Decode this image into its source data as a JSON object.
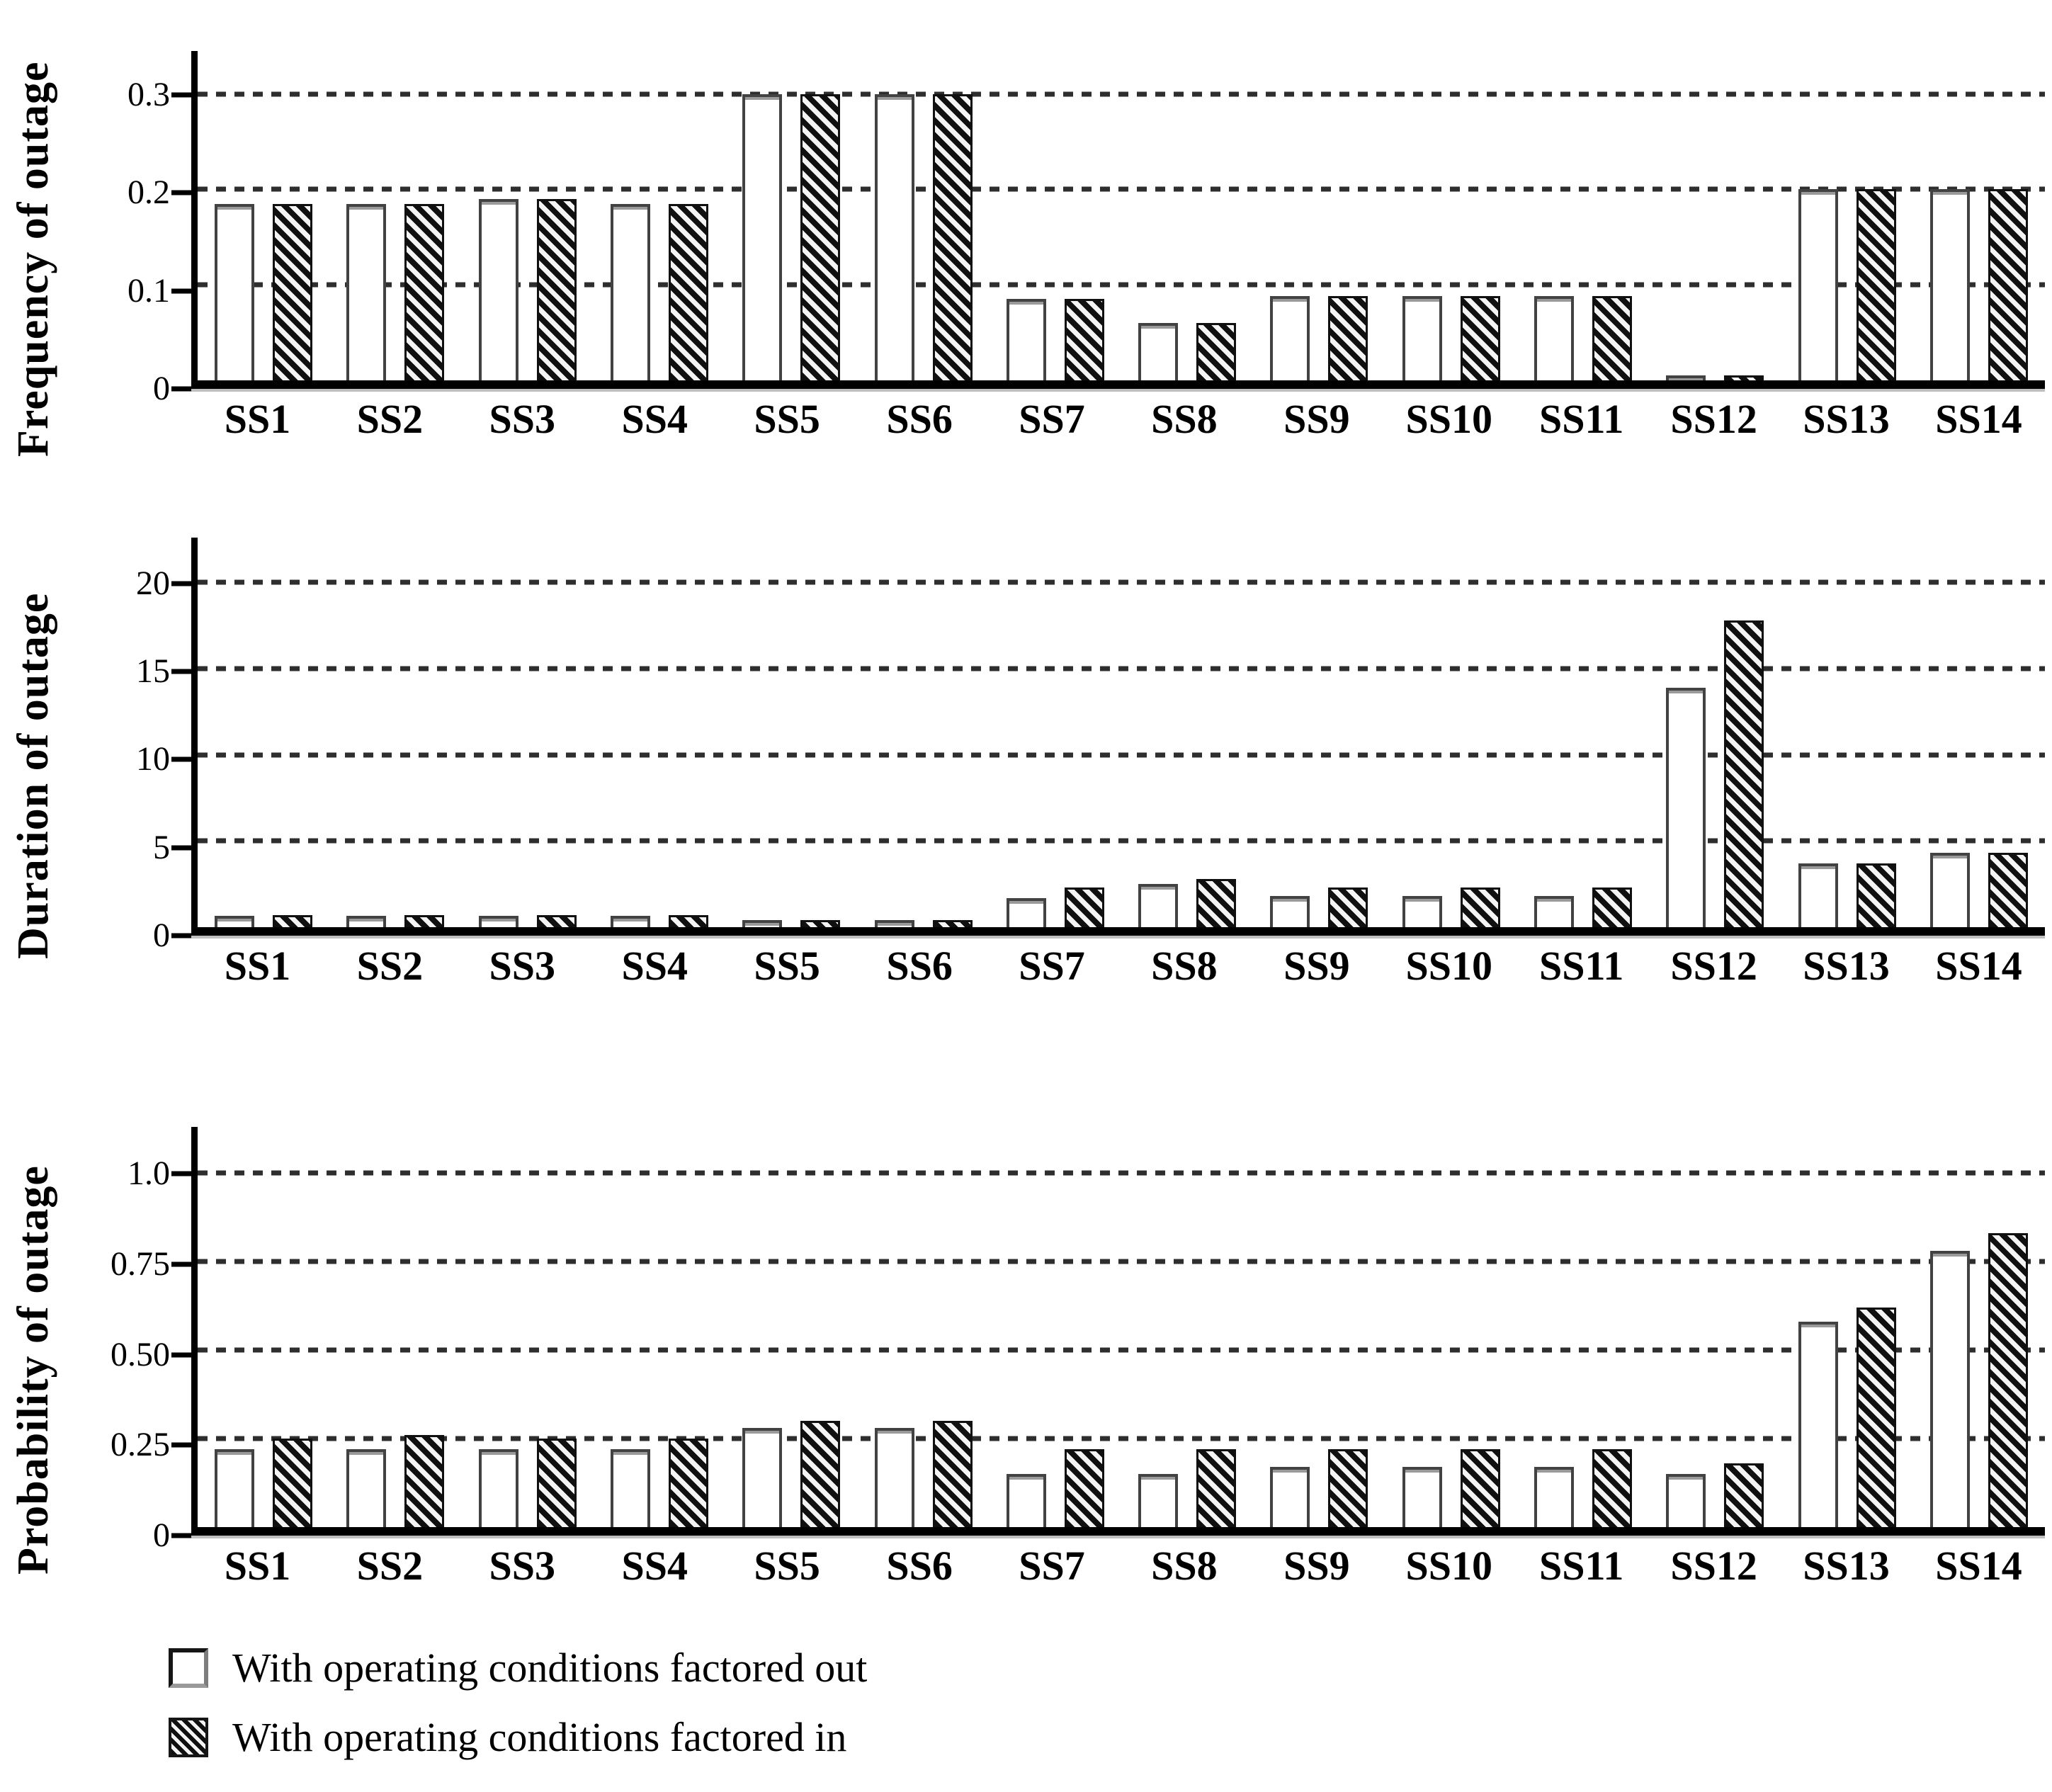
{
  "colors": {
    "axis_color": "#000000",
    "text_color": "#000000",
    "bar_outline": "#424242",
    "hatch_color": "#101010",
    "gridline_color": "#2e2e2e",
    "bg_color": "#ffffff"
  },
  "legend": {
    "items": [
      {
        "swatch": "white",
        "label": "With operating conditions factored out"
      },
      {
        "swatch": "hatched",
        "label": "With operating conditions factored in"
      }
    ]
  },
  "chart_data": [
    {
      "type": "bar",
      "title": "",
      "ylabel": "Frequency of outage",
      "xlabel": "",
      "grid": "horizontal-dashed",
      "legend_position": "below-figure",
      "categories": [
        "SS1",
        "SS2",
        "SS3",
        "SS4",
        "SS5",
        "SS6",
        "SS7",
        "SS8",
        "SS9",
        "SS10",
        "SS11",
        "SS12",
        "SS13",
        "SS14"
      ],
      "ylim": [
        0,
        0.345
      ],
      "yticks": [
        {
          "value": 0.3,
          "label": "0.3"
        },
        {
          "value": 0.2,
          "label": "0.2"
        },
        {
          "value": 0.1,
          "label": "0.1"
        },
        {
          "value": 0,
          "label": "0"
        }
      ],
      "series": [
        {
          "name": "With operating conditions factored out",
          "values": [
            0.185,
            0.185,
            0.19,
            0.185,
            0.3,
            0.3,
            0.085,
            0.06,
            0.088,
            0.088,
            0.088,
            0.005,
            0.2,
            0.2
          ]
        },
        {
          "name": "With operating conditions factored in",
          "values": [
            0.185,
            0.185,
            0.19,
            0.185,
            0.3,
            0.3,
            0.085,
            0.06,
            0.088,
            0.088,
            0.088,
            0.005,
            0.2,
            0.2
          ]
        }
      ]
    },
    {
      "type": "bar",
      "title": "",
      "ylabel": "Duration of outage",
      "xlabel": "",
      "grid": "horizontal-dashed",
      "legend_position": "below-figure",
      "categories": [
        "SS1",
        "SS2",
        "SS3",
        "SS4",
        "SS5",
        "SS6",
        "SS7",
        "SS8",
        "SS9",
        "SS10",
        "SS11",
        "SS12",
        "SS13",
        "SS14"
      ],
      "ylim": [
        0,
        22.6
      ],
      "yticks": [
        {
          "value": 20,
          "label": "20"
        },
        {
          "value": 15,
          "label": "15"
        },
        {
          "value": 10,
          "label": "10"
        },
        {
          "value": 5,
          "label": "5"
        },
        {
          "value": 0,
          "label": "0"
        }
      ],
      "series": [
        {
          "name": "With operating conditions factored out",
          "values": [
            0.65,
            0.65,
            0.65,
            0.65,
            0.4,
            0.4,
            1.7,
            2.5,
            1.8,
            1.8,
            1.8,
            13.9,
            3.7,
            4.3
          ]
        },
        {
          "name": "With operating conditions factored in",
          "values": [
            0.7,
            0.7,
            0.7,
            0.7,
            0.4,
            0.4,
            2.3,
            2.8,
            2.3,
            2.3,
            2.3,
            17.8,
            3.7,
            4.3
          ]
        }
      ]
    },
    {
      "type": "bar",
      "title": "",
      "ylabel": "Probability of outage",
      "xlabel": "",
      "grid": "horizontal-dashed",
      "legend_position": "below-figure",
      "categories": [
        "SS1",
        "SS2",
        "SS3",
        "SS4",
        "SS5",
        "SS6",
        "SS7",
        "SS8",
        "SS9",
        "SS10",
        "SS11",
        "SS12",
        "SS13",
        "SS14"
      ],
      "ylim": [
        0,
        1.13
      ],
      "yticks": [
        {
          "value": 1.0,
          "label": "1.0"
        },
        {
          "value": 0.75,
          "label": "0.75"
        },
        {
          "value": 0.5,
          "label": "0.50"
        },
        {
          "value": 0.25,
          "label": "0.25"
        },
        {
          "value": 0,
          "label": "0"
        }
      ],
      "series": [
        {
          "name": "With operating conditions factored out",
          "values": [
            0.22,
            0.22,
            0.22,
            0.22,
            0.28,
            0.28,
            0.15,
            0.15,
            0.17,
            0.17,
            0.17,
            0.15,
            0.58,
            0.78
          ]
        },
        {
          "name": "With operating conditions factored in",
          "values": [
            0.25,
            0.26,
            0.25,
            0.25,
            0.3,
            0.3,
            0.22,
            0.22,
            0.22,
            0.22,
            0.22,
            0.18,
            0.62,
            0.83
          ]
        }
      ]
    }
  ]
}
